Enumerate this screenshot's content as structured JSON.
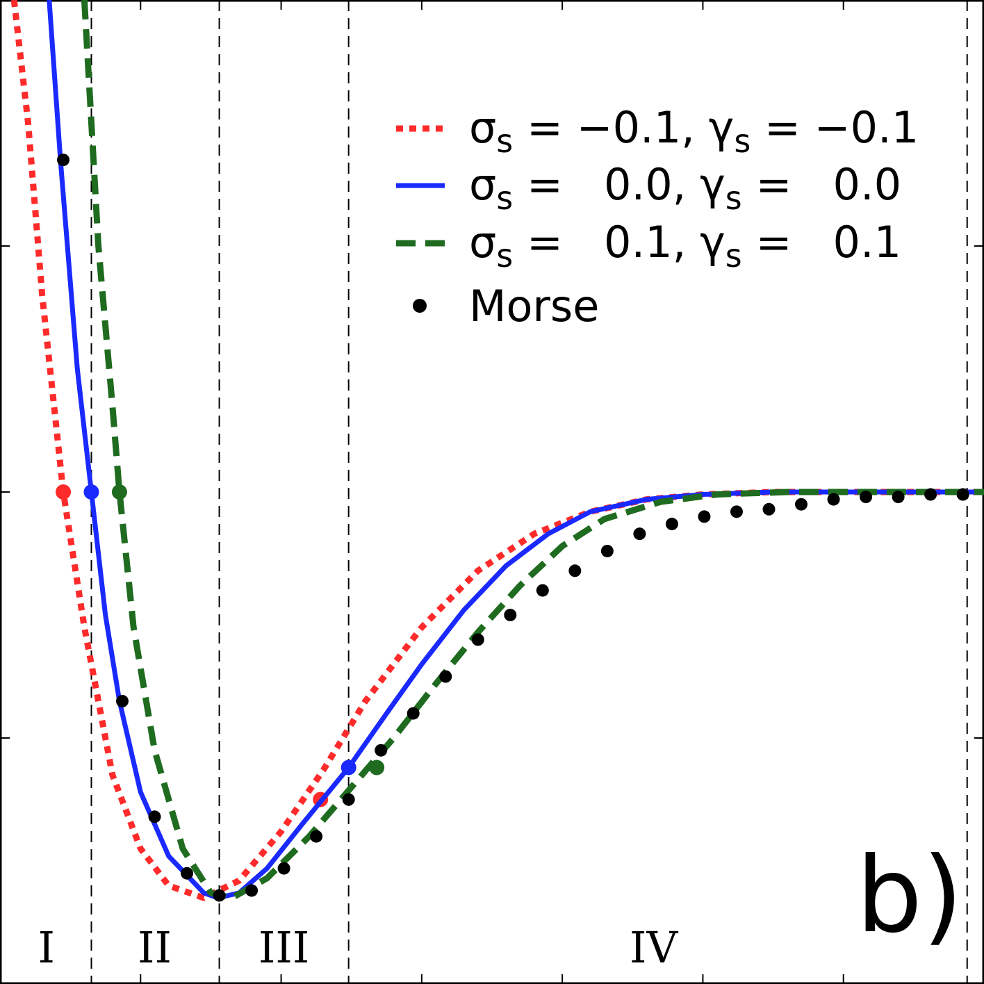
{
  "chart_data": {
    "type": "line",
    "panel_label": "b)",
    "xlim": [
      0.0,
      7.0
    ],
    "ylim": [
      -2.0,
      2.0
    ],
    "grid": false,
    "legend_position": "top-right",
    "x_tick_values": [
      0.0,
      1.0,
      2.0,
      3.0,
      4.0,
      5.0,
      6.0,
      7.0
    ],
    "y_tick_values": [
      -2.0,
      -1.0,
      0.0,
      1.0,
      2.0
    ],
    "region_boundaries": [
      0.65,
      1.56,
      2.48,
      6.88
    ],
    "region_labels": [
      {
        "text": "I",
        "x": 0.33
      },
      {
        "text": "II",
        "x": 1.1
      },
      {
        "text": "III",
        "x": 2.02
      },
      {
        "text": "IV",
        "x": 4.65
      }
    ],
    "series": [
      {
        "label_sigma": "σ",
        "label_sigma_sub": "s",
        "label_sigma_val": " = −0.1, ",
        "label_gamma": "γ",
        "label_gamma_sub": "s",
        "label_gamma_val": " = −0.1",
        "color": "#ff2a2a",
        "style": "dotted",
        "points": [
          [
            0.1,
            2.0
          ],
          [
            0.2,
            1.5
          ],
          [
            0.3,
            0.8
          ],
          [
            0.45,
            0.0
          ],
          [
            0.6,
            -0.55
          ],
          [
            0.8,
            -1.15
          ],
          [
            1.0,
            -1.45
          ],
          [
            1.2,
            -1.6
          ],
          [
            1.45,
            -1.65
          ],
          [
            1.7,
            -1.58
          ],
          [
            2.0,
            -1.38
          ],
          [
            2.3,
            -1.13
          ],
          [
            2.6,
            -0.85
          ],
          [
            3.0,
            -0.55
          ],
          [
            3.4,
            -0.32
          ],
          [
            3.8,
            -0.17
          ],
          [
            4.2,
            -0.08
          ],
          [
            4.6,
            -0.03
          ],
          [
            5.0,
            -0.01
          ],
          [
            5.5,
            0.0
          ],
          [
            7.0,
            0.0
          ]
        ],
        "marker_points": [
          [
            0.45,
            0.0
          ],
          [
            2.28,
            -1.25
          ]
        ]
      },
      {
        "label_sigma": "σ",
        "label_sigma_sub": "s",
        "label_sigma_val": " =   0.0, ",
        "label_gamma": "γ",
        "label_gamma_sub": "s",
        "label_gamma_val": " =   0.0",
        "color": "#1a2aff",
        "style": "solid",
        "points": [
          [
            0.35,
            2.0
          ],
          [
            0.43,
            1.35
          ],
          [
            0.55,
            0.5
          ],
          [
            0.65,
            0.0
          ],
          [
            0.75,
            -0.5
          ],
          [
            0.85,
            -0.85
          ],
          [
            1.0,
            -1.22
          ],
          [
            1.2,
            -1.48
          ],
          [
            1.45,
            -1.63
          ],
          [
            1.55,
            -1.65
          ],
          [
            1.7,
            -1.63
          ],
          [
            1.9,
            -1.53
          ],
          [
            2.15,
            -1.35
          ],
          [
            2.48,
            -1.12
          ],
          [
            2.75,
            -0.9
          ],
          [
            3.0,
            -0.7
          ],
          [
            3.3,
            -0.48
          ],
          [
            3.6,
            -0.3
          ],
          [
            3.9,
            -0.17
          ],
          [
            4.2,
            -0.08
          ],
          [
            4.6,
            -0.03
          ],
          [
            5.0,
            -0.01
          ],
          [
            5.5,
            0.0
          ],
          [
            7.0,
            0.0
          ]
        ],
        "marker_points": [
          [
            0.65,
            0.0
          ],
          [
            2.48,
            -1.12
          ]
        ]
      },
      {
        "label_sigma": "σ",
        "label_sigma_sub": "s",
        "label_sigma_val": " =   0.1, ",
        "label_gamma": "γ",
        "label_gamma_sub": "s",
        "label_gamma_val": " =   0.1",
        "color": "#1f6b1f",
        "style": "dashed",
        "points": [
          [
            0.6,
            2.0
          ],
          [
            0.7,
            1.0
          ],
          [
            0.8,
            0.35
          ],
          [
            0.85,
            0.0
          ],
          [
            0.95,
            -0.55
          ],
          [
            1.1,
            -1.05
          ],
          [
            1.3,
            -1.45
          ],
          [
            1.5,
            -1.63
          ],
          [
            1.65,
            -1.65
          ],
          [
            1.9,
            -1.57
          ],
          [
            2.2,
            -1.4
          ],
          [
            2.5,
            -1.2
          ],
          [
            2.8,
            -1.0
          ],
          [
            3.1,
            -0.78
          ],
          [
            3.4,
            -0.57
          ],
          [
            3.7,
            -0.38
          ],
          [
            4.0,
            -0.22
          ],
          [
            4.3,
            -0.11
          ],
          [
            4.7,
            -0.04
          ],
          [
            5.1,
            -0.01
          ],
          [
            5.6,
            0.0
          ],
          [
            7.0,
            0.0
          ]
        ],
        "marker_points": [
          [
            0.85,
            0.0
          ],
          [
            2.68,
            -1.12
          ]
        ]
      },
      {
        "label": "Morse",
        "color": "#000000",
        "style": "markers",
        "points": [
          [
            0.45,
            1.35
          ],
          [
            0.87,
            -0.85
          ],
          [
            1.1,
            -1.32
          ],
          [
            1.33,
            -1.55
          ],
          [
            1.56,
            -1.64
          ],
          [
            1.79,
            -1.62
          ],
          [
            2.02,
            -1.53
          ],
          [
            2.25,
            -1.4
          ],
          [
            2.48,
            -1.25
          ],
          [
            2.71,
            -1.05
          ],
          [
            2.94,
            -0.9
          ],
          [
            3.17,
            -0.75
          ],
          [
            3.4,
            -0.6
          ],
          [
            3.63,
            -0.5
          ],
          [
            3.86,
            -0.4
          ],
          [
            4.09,
            -0.32
          ],
          [
            4.32,
            -0.24
          ],
          [
            4.55,
            -0.17
          ],
          [
            4.78,
            -0.13
          ],
          [
            5.01,
            -0.1
          ],
          [
            5.24,
            -0.08
          ],
          [
            5.47,
            -0.07
          ],
          [
            5.7,
            -0.05
          ],
          [
            5.93,
            -0.03
          ],
          [
            6.16,
            -0.02
          ],
          [
            6.39,
            -0.02
          ],
          [
            6.62,
            -0.01
          ],
          [
            6.85,
            -0.01
          ],
          [
            7.08,
            -0.01
          ]
        ]
      }
    ]
  }
}
